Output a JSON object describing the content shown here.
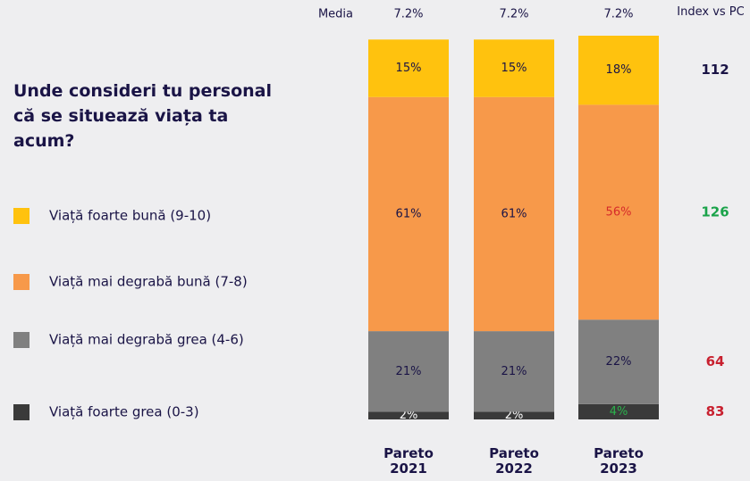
{
  "chart_data": {
    "type": "stacked-bar",
    "title": "Unde consideri tu personal că se situează viața ta acum?",
    "categories": [
      "Pareto 2021",
      "Pareto 2022",
      "Pareto 2023"
    ],
    "ylim": [
      0,
      100
    ],
    "series": [
      {
        "name": "Viață foarte bună (9-10)",
        "color": "#ffc20e",
        "values": [
          15,
          15,
          18
        ],
        "value_labels": [
          "15%",
          "15%",
          "18%"
        ],
        "value_label_colors": [
          "#1a1446",
          "#1a1446",
          "#1a1446"
        ]
      },
      {
        "name": "Viață mai degrabă bună (7-8)",
        "color": "#f7994a",
        "values": [
          61,
          61,
          56
        ],
        "value_labels": [
          "61%",
          "61%",
          "56%"
        ],
        "value_label_colors": [
          "#1a1446",
          "#1a1446",
          "#d62a2a"
        ]
      },
      {
        "name": "Viață mai degrabă grea (4-6)",
        "color": "#808080",
        "values": [
          21,
          21,
          22
        ],
        "value_labels": [
          "21%",
          "21%",
          "22%"
        ],
        "value_label_colors": [
          "#1a1446",
          "#1a1446",
          "#1a1446"
        ]
      },
      {
        "name": "Viață foarte grea (0-3)",
        "color": "#3a3a3a",
        "values": [
          2,
          2,
          4
        ],
        "value_labels": [
          "2%",
          "2%",
          "4%"
        ],
        "value_label_colors": [
          "#ffffff",
          "#ffffff",
          "#2bb24c"
        ]
      }
    ],
    "media": {
      "label": "Media",
      "values": [
        7.2,
        7.2,
        7.2
      ],
      "value_labels": [
        "7.2%",
        "7.2%",
        "7.2%"
      ]
    },
    "index": {
      "label": "Index vs PC",
      "values": [
        112,
        126,
        64,
        83
      ],
      "colors": [
        "#1a1446",
        "#1aa34a",
        "#c8202f",
        "#c8202f"
      ]
    }
  }
}
